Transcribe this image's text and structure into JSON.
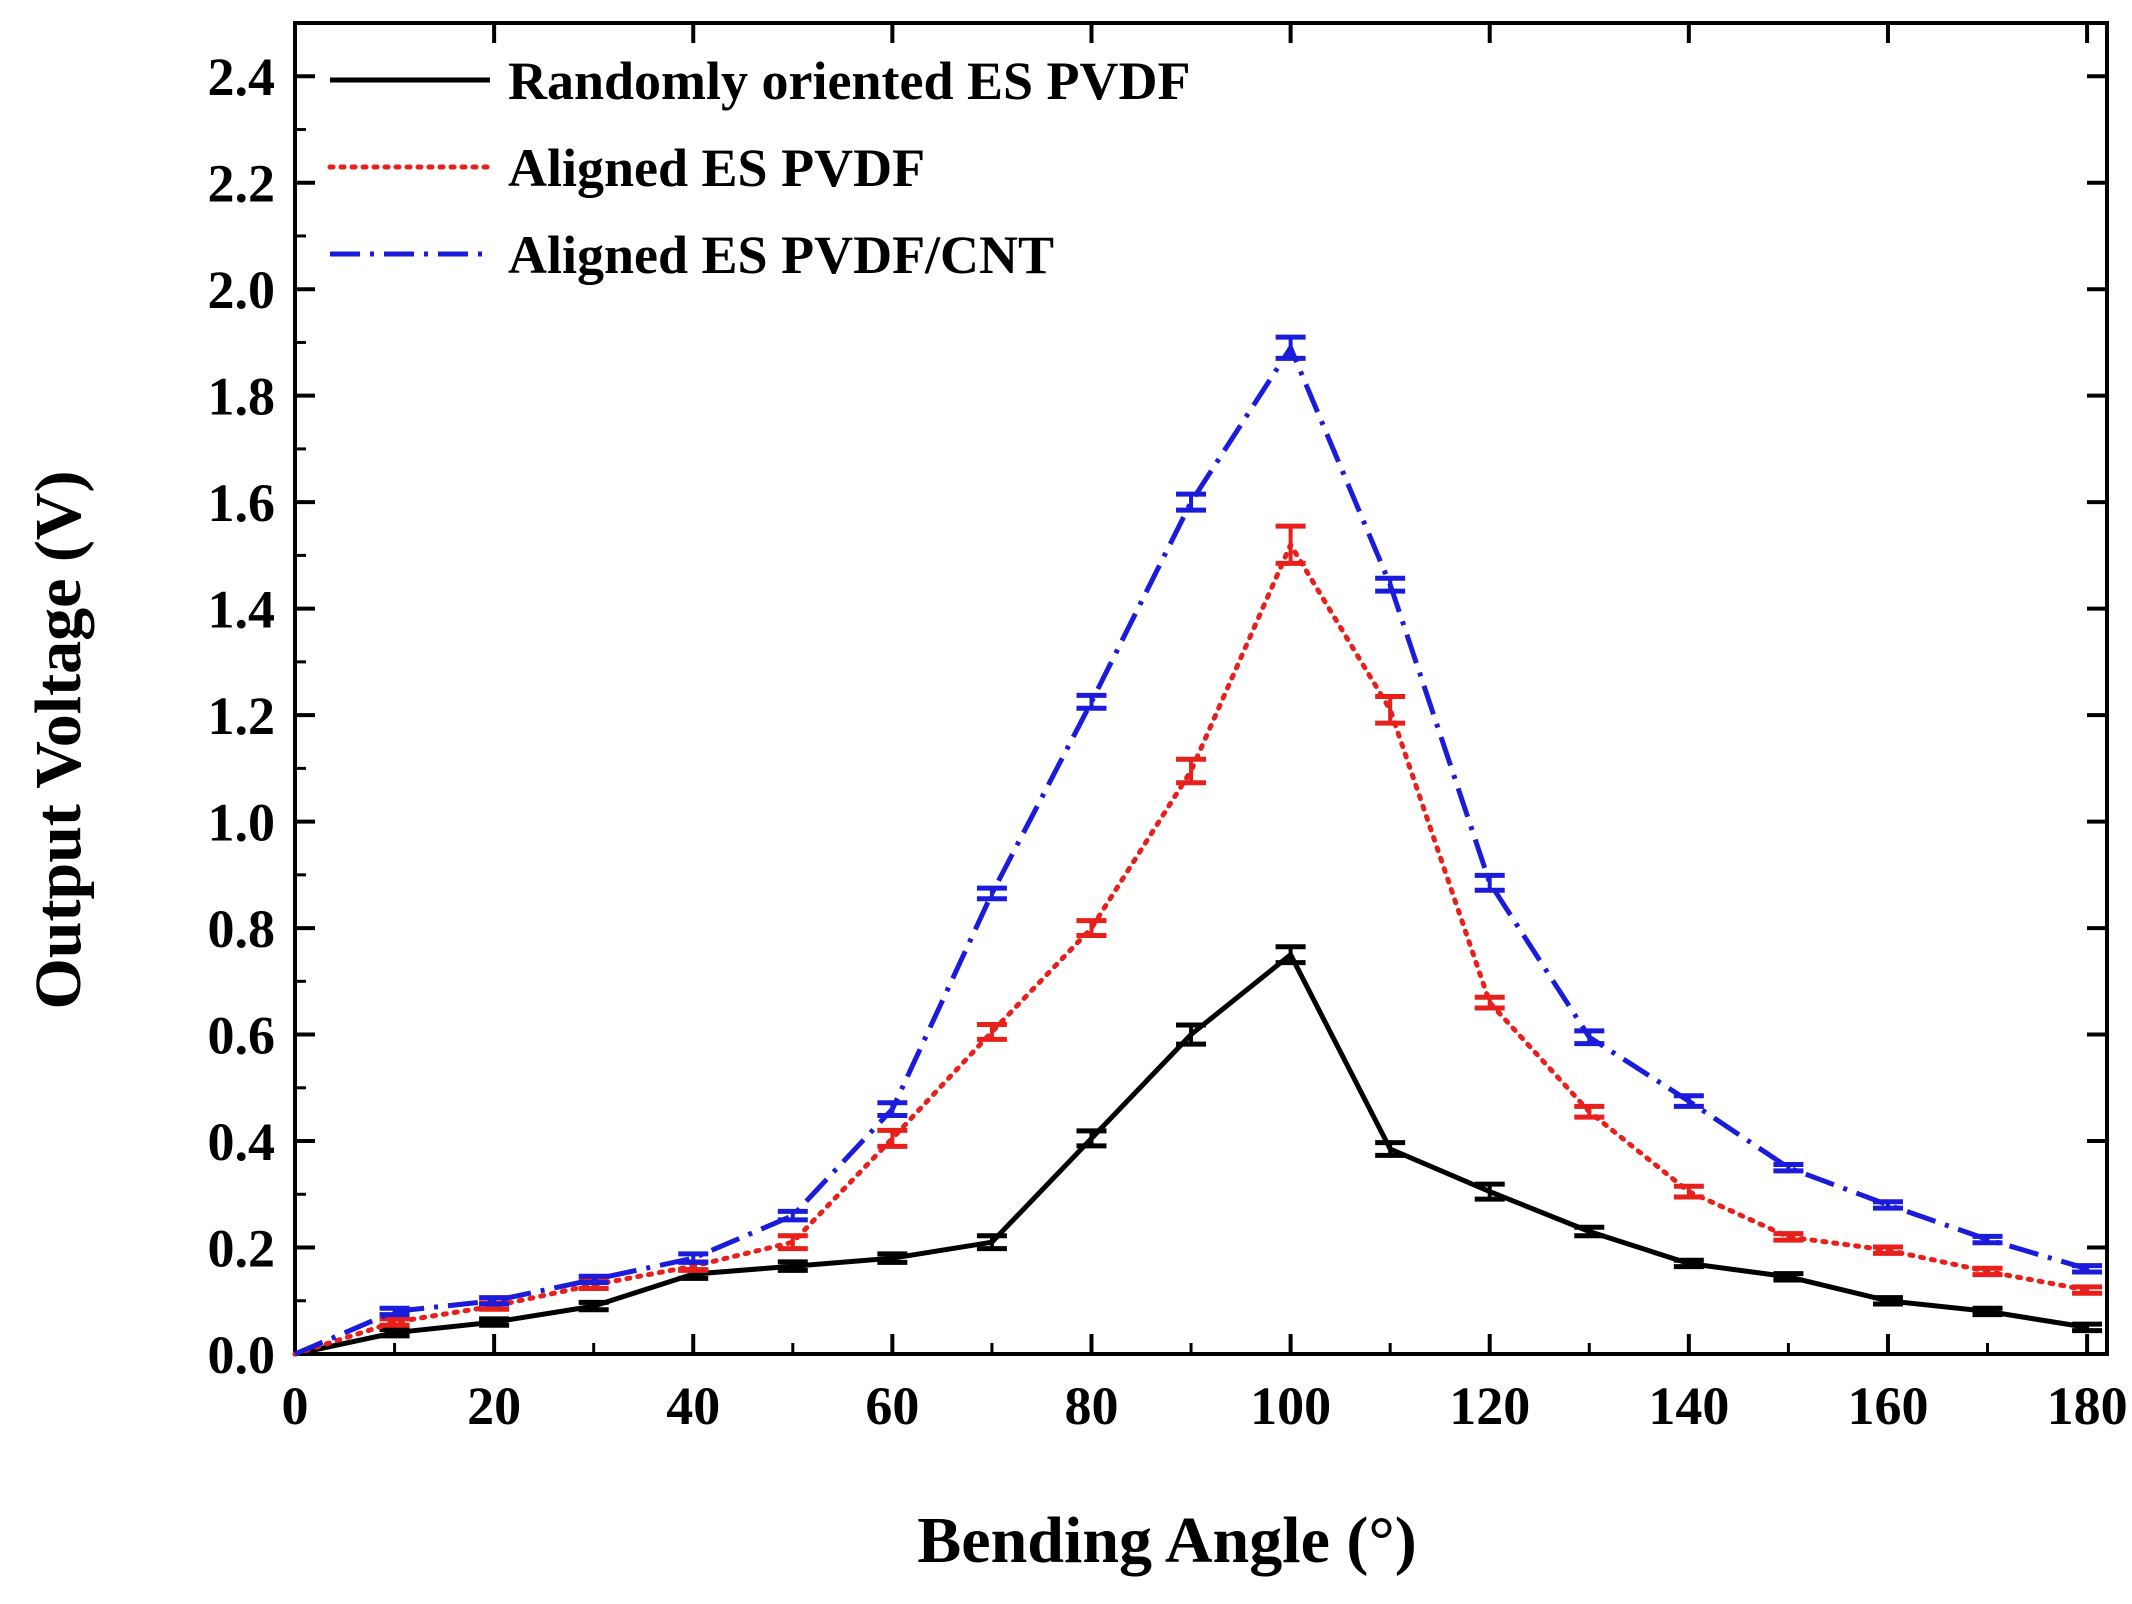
{
  "chart_data": {
    "type": "line",
    "title": "",
    "xlabel": "Bending Angle (°)",
    "ylabel": "Output Voltage (V)",
    "xlim": [
      0,
      182
    ],
    "ylim": [
      0,
      2.5
    ],
    "x_ticks": [
      0,
      20,
      40,
      60,
      80,
      100,
      120,
      140,
      160,
      180
    ],
    "x_tick_labels": [
      "0",
      "20",
      "40",
      "60",
      "80",
      "100",
      "120",
      "140",
      "160",
      "180"
    ],
    "y_ticks": [
      0.0,
      0.2,
      0.4,
      0.6,
      0.8,
      1.0,
      1.2,
      1.4,
      1.6,
      1.8,
      2.0,
      2.2,
      2.4
    ],
    "y_tick_labels": [
      "0.0",
      "0.2",
      "0.4",
      "0.6",
      "0.8",
      "1.0",
      "1.2",
      "1.4",
      "1.6",
      "1.8",
      "2.0",
      "2.2",
      "2.4"
    ],
    "grid": false,
    "legend_position": "top-left",
    "x": [
      0,
      10,
      20,
      30,
      40,
      50,
      60,
      70,
      80,
      90,
      100,
      110,
      120,
      130,
      140,
      150,
      160,
      170,
      180
    ],
    "series": [
      {
        "name": "Randomly oriented ES PVDF",
        "color": "#000000",
        "style": "solid",
        "values": [
          0.0,
          0.04,
          0.06,
          0.09,
          0.15,
          0.165,
          0.18,
          0.21,
          0.405,
          0.6,
          0.75,
          0.385,
          0.305,
          0.23,
          0.17,
          0.145,
          0.1,
          0.08,
          0.05
        ],
        "errors": [
          0,
          0.006,
          0.006,
          0.007,
          0.008,
          0.008,
          0.008,
          0.012,
          0.014,
          0.018,
          0.015,
          0.012,
          0.014,
          0.008,
          0.006,
          0.006,
          0.006,
          0.006,
          0.005
        ]
      },
      {
        "name": "Aligned ES PVDF",
        "color": "#e8201c",
        "style": "dotted",
        "values": [
          0.0,
          0.06,
          0.09,
          0.13,
          0.165,
          0.21,
          0.405,
          0.605,
          0.8,
          1.095,
          1.52,
          1.21,
          0.66,
          0.455,
          0.305,
          0.22,
          0.195,
          0.155,
          0.12
        ],
        "errors": [
          0,
          0.006,
          0.006,
          0.007,
          0.008,
          0.012,
          0.015,
          0.014,
          0.014,
          0.022,
          0.035,
          0.025,
          0.01,
          0.01,
          0.01,
          0.006,
          0.006,
          0.006,
          0.005
        ]
      },
      {
        "name": "Aligned ES PVDF/CNT",
        "color": "#1b1bdc",
        "style": "dashdot",
        "values": [
          0.0,
          0.08,
          0.1,
          0.14,
          0.18,
          0.26,
          0.46,
          0.865,
          1.225,
          1.6,
          1.89,
          1.445,
          0.885,
          0.595,
          0.475,
          0.35,
          0.28,
          0.215,
          0.16
        ],
        "errors": [
          0,
          0.006,
          0.006,
          0.006,
          0.008,
          0.008,
          0.012,
          0.01,
          0.012,
          0.015,
          0.02,
          0.012,
          0.014,
          0.012,
          0.01,
          0.006,
          0.006,
          0.006,
          0.006
        ]
      }
    ]
  }
}
